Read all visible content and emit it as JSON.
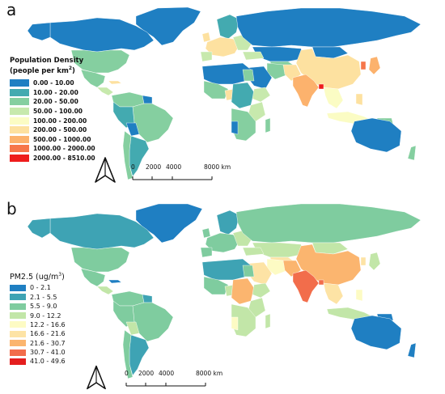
{
  "panel_a": {
    "letter": "a",
    "legend_title_line1": "Population Density",
    "legend_title_line2": "(people per km",
    "legend_title_sup": "2",
    "legend_title_end": ")",
    "legend": [
      {
        "label": "0.00 - 10.00",
        "color": "#1f7fc2"
      },
      {
        "label": "10.00 - 20.00",
        "color": "#43aab0"
      },
      {
        "label": "20.00 - 50.00",
        "color": "#85cfa0"
      },
      {
        "label": "50.00 - 100.00",
        "color": "#c7e9ad"
      },
      {
        "label": "100.00 - 200.00",
        "color": "#fbfcc4"
      },
      {
        "label": "200.00 - 500.00",
        "color": "#fde1a0"
      },
      {
        "label": "500.00 - 1000.00",
        "color": "#fcb26d"
      },
      {
        "label": "1000.00 - 2000.00",
        "color": "#f6764a"
      },
      {
        "label": "2000.00 - 8510.00",
        "color": "#ee1c1c"
      }
    ],
    "scale_ticks": [
      "0",
      "2000",
      "4000",
      "8000 km"
    ]
  },
  "panel_b": {
    "letter": "b",
    "legend_title": "PM2.5 (ug/m",
    "legend_title_sup": "3",
    "legend_title_end": ")",
    "legend": [
      {
        "label": "0 - 2.1",
        "color": "#1f7fc2"
      },
      {
        "label": "2.1 - 5.5",
        "color": "#3ea3b4"
      },
      {
        "label": "5.5 - 9.0",
        "color": "#7fcc9f"
      },
      {
        "label": "9.0 - 12.2",
        "color": "#c2e6a8"
      },
      {
        "label": "12.2 - 16.6",
        "color": "#fdfbc4"
      },
      {
        "label": "16.6 - 21.6",
        "color": "#fde3a5"
      },
      {
        "label": "21.6 - 30.7",
        "color": "#fbb56f"
      },
      {
        "label": "30.7 - 41.0",
        "color": "#f26d4b"
      },
      {
        "label": "41.0 - 49.6",
        "color": "#e41e1e"
      }
    ],
    "scale_ticks": [
      "0",
      "2000",
      "4000",
      "8000 km"
    ]
  },
  "icons": {
    "north_arrow": "north-arrow-icon"
  }
}
